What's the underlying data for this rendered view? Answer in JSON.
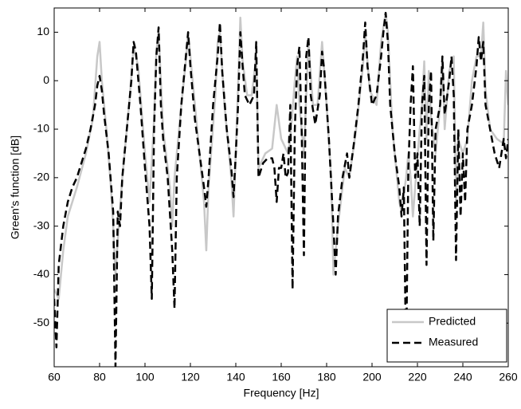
{
  "chart_data": {
    "type": "line",
    "xlabel": "Frequency [Hz]",
    "ylabel": "Green's function [dB]",
    "xlim": [
      60,
      260
    ],
    "xticks": [
      60,
      80,
      100,
      120,
      140,
      160,
      180,
      200,
      220,
      240,
      260
    ],
    "ylim": [
      -59,
      15
    ],
    "yticks": [
      -50,
      -40,
      -30,
      -20,
      -10,
      0,
      10
    ],
    "legend": "lower right",
    "series": [
      {
        "name": "Predicted",
        "color": "#c8c8c8",
        "style": "solid",
        "x": [
          60,
          62,
          64,
          66,
          70,
          74,
          77,
          79,
          80,
          81,
          83,
          85,
          86,
          87,
          88,
          90,
          93,
          95,
          97,
          100,
          102,
          104,
          105,
          106,
          108,
          111,
          112,
          113,
          116,
          118,
          119,
          121,
          124,
          126,
          127,
          128,
          131,
          132,
          133,
          135,
          138,
          139,
          140,
          142,
          143,
          145,
          147,
          149,
          150,
          153,
          156,
          158,
          160,
          163,
          164,
          166,
          167,
          168,
          170,
          172,
          174,
          176,
          178,
          180,
          182,
          183,
          185,
          188,
          190,
          193,
          196,
          197,
          199,
          202,
          204,
          206,
          207,
          209,
          212,
          213,
          215,
          216,
          217,
          218,
          219,
          221,
          222,
          223,
          224,
          225,
          226,
          228,
          230,
          231,
          232,
          234,
          236,
          237,
          238,
          240,
          242,
          244,
          246,
          248,
          249,
          250,
          252,
          255,
          258,
          259,
          260
        ],
        "values": [
          -43,
          -45,
          -35,
          -28,
          -22,
          -15,
          -8,
          5,
          8,
          0,
          -10,
          -22,
          -30,
          -40,
          -33,
          -20,
          -5,
          7,
          3,
          -15,
          -25,
          -8,
          6,
          10,
          -10,
          -22,
          -30,
          -20,
          -5,
          4,
          10,
          0,
          -15,
          -25,
          -35,
          -22,
          -3,
          8,
          10,
          -5,
          -20,
          -28,
          -15,
          13,
          4,
          -3,
          -3,
          5,
          -18,
          -15,
          -14,
          -5,
          -12,
          -15,
          -12,
          0,
          5,
          -5,
          -15,
          8,
          -5,
          -5,
          8,
          -5,
          -20,
          -40,
          -30,
          -18,
          -20,
          -10,
          3,
          10,
          -2,
          -5,
          8,
          14,
          10,
          -10,
          -25,
          -27,
          -20,
          -15,
          -20,
          -28,
          -22,
          -10,
          -5,
          4,
          -12,
          2,
          -8,
          -15,
          -5,
          4,
          -10,
          2,
          5,
          -25,
          -12,
          -15,
          -12,
          0,
          5,
          5,
          12,
          -2,
          -10,
          -12,
          -13,
          2,
          -5
        ]
      },
      {
        "name": "Measured",
        "color": "#000000",
        "style": "dashed",
        "x": [
          60,
          61,
          62,
          64,
          66,
          68,
          70,
          72,
          74,
          76,
          78,
          79,
          80,
          81,
          82,
          84,
          86,
          87,
          88,
          89,
          90,
          92,
          94,
          95,
          96,
          98,
          100,
          102,
          103,
          104,
          105,
          106,
          107,
          108,
          110,
          112,
          113,
          114,
          116,
          118,
          119,
          120,
          122,
          124,
          126,
          127,
          128,
          130,
          132,
          133,
          134,
          136,
          138,
          139,
          140,
          141,
          142,
          143,
          144,
          146,
          148,
          149,
          150,
          152,
          154,
          156,
          157,
          158,
          159,
          160,
          161,
          162,
          163,
          164,
          165,
          166,
          167,
          168,
          169,
          170,
          171,
          172,
          173,
          175,
          177,
          178,
          179,
          181,
          183,
          184,
          185,
          187,
          189,
          190,
          192,
          194,
          196,
          197,
          198,
          200,
          202,
          204,
          205,
          206,
          207,
          208,
          210,
          212,
          213,
          214,
          215,
          216,
          217,
          218,
          219,
          220,
          221,
          222,
          223,
          224,
          225,
          226,
          227,
          228,
          230,
          231,
          232,
          234,
          235,
          236,
          237,
          238,
          239,
          240,
          241,
          242,
          244,
          246,
          247,
          248,
          249,
          250,
          252,
          254,
          256,
          258,
          259,
          260
        ],
        "values": [
          -45,
          -55,
          -38,
          -30,
          -25,
          -22,
          -20,
          -17,
          -14,
          -10,
          -5,
          -1,
          1,
          -2,
          -7,
          -15,
          -27,
          -59,
          -27,
          -30,
          -20,
          -10,
          0,
          8,
          6,
          -5,
          -18,
          -30,
          -45,
          -10,
          5,
          11,
          -5,
          -12,
          -20,
          -35,
          -47,
          -20,
          -5,
          5,
          10,
          3,
          -8,
          -15,
          -22,
          -26,
          -20,
          -5,
          5,
          12,
          2,
          -10,
          -18,
          -24,
          -15,
          -5,
          10,
          3,
          -3,
          -5,
          -3,
          8,
          -20,
          -17,
          -16,
          -16,
          -18,
          -25,
          -18,
          -18,
          -15,
          -20,
          -19,
          -5,
          -43,
          -10,
          3,
          7,
          -10,
          -36,
          5,
          9,
          -3,
          -9,
          -3,
          6,
          2,
          -12,
          -30,
          -40,
          -28,
          -20,
          -15,
          -20,
          -13,
          -5,
          5,
          12,
          3,
          -5,
          -3,
          5,
          10,
          14,
          8,
          -5,
          -15,
          -22,
          -28,
          -22,
          -58,
          -18,
          -5,
          3,
          -20,
          -15,
          -30,
          -5,
          1,
          -38,
          -5,
          2,
          -33,
          -10,
          -5,
          5,
          -7,
          0,
          5,
          -3,
          -37,
          -10,
          -28,
          -15,
          -25,
          -10,
          -5,
          3,
          9,
          4,
          8,
          -5,
          -10,
          -15,
          -18,
          -12,
          -16,
          -12
        ]
      }
    ]
  }
}
